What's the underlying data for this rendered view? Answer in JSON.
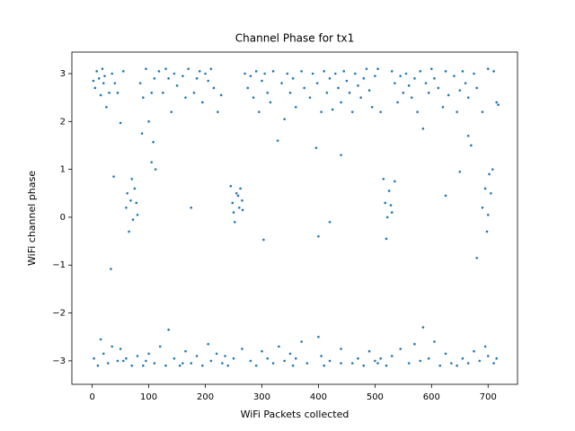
{
  "chart_data": {
    "type": "scatter",
    "title": "Channel Phase for tx1",
    "xlabel": "WiFi Packets collected",
    "ylabel": "WiFi channel phase",
    "color": "#1f77b4",
    "xlim": [
      -36,
      752
    ],
    "ylim": [
      -3.49,
      3.45
    ],
    "xticks": [
      0,
      100,
      200,
      300,
      400,
      500,
      600,
      700
    ],
    "yticks": [
      {
        "value": -3,
        "label": "−3"
      },
      {
        "value": -2,
        "label": "−2"
      },
      {
        "value": -1,
        "label": "−1"
      },
      0,
      1,
      2,
      3
    ],
    "x": [
      2,
      5,
      8,
      12,
      15,
      18,
      22,
      25,
      30,
      35,
      40,
      45,
      50,
      55,
      85,
      90,
      95,
      100,
      105,
      110,
      118,
      125,
      130,
      135,
      140,
      145,
      150,
      160,
      165,
      170,
      180,
      185,
      190,
      195,
      200,
      205,
      210,
      215,
      222,
      228,
      270,
      275,
      280,
      285,
      290,
      295,
      300,
      305,
      310,
      315,
      320,
      328,
      335,
      340,
      345,
      350,
      355,
      360,
      370,
      375,
      385,
      390,
      398,
      405,
      410,
      415,
      420,
      425,
      430,
      435,
      440,
      445,
      450,
      455,
      460,
      465,
      470,
      475,
      480,
      485,
      490,
      495,
      500,
      505,
      510,
      530,
      535,
      540,
      545,
      550,
      555,
      560,
      565,
      570,
      575,
      580,
      585,
      590,
      595,
      600,
      605,
      612,
      620,
      625,
      630,
      640,
      645,
      650,
      655,
      660,
      665,
      670,
      675,
      680,
      690,
      700,
      710,
      715,
      718,
      20,
      3,
      10,
      15,
      20,
      28,
      35,
      45,
      50,
      60,
      70,
      80,
      90,
      95,
      100,
      110,
      120,
      130,
      135,
      145,
      155,
      165,
      175,
      185,
      195,
      205,
      210,
      220,
      230,
      240,
      250,
      265,
      280,
      290,
      300,
      310,
      320,
      330,
      340,
      350,
      355,
      360,
      370,
      380,
      400,
      405,
      410,
      420,
      440,
      460,
      470,
      480,
      490,
      500,
      505,
      510,
      520,
      530,
      545,
      560,
      570,
      580,
      585,
      595,
      605,
      615,
      625,
      635,
      645,
      655,
      665,
      675,
      685,
      695,
      700,
      710,
      715,
      55,
      160,
      235,
      440,
      33,
      38,
      60,
      62,
      65,
      68,
      70,
      72,
      75,
      78,
      88,
      105,
      108,
      175,
      245,
      248,
      250,
      252,
      255,
      258,
      260,
      262,
      265,
      303,
      400,
      420,
      440,
      515,
      518,
      520,
      522,
      525,
      528,
      396,
      625,
      650,
      665,
      680,
      690,
      695,
      698,
      700,
      702,
      705,
      708,
      80,
      266,
      530,
      112,
      535
    ],
    "values": [
      2.85,
      2.7,
      3.05,
      2.9,
      2.55,
      3.1,
      2.95,
      2.3,
      2.6,
      3.0,
      2.8,
      2.6,
      1.97,
      3.05,
      2.8,
      2.5,
      3.1,
      2.0,
      2.6,
      2.9,
      3.05,
      2.6,
      3.1,
      2.9,
      2.2,
      3.0,
      2.75,
      2.95,
      2.5,
      3.1,
      2.6,
      2.9,
      3.05,
      2.4,
      3.0,
      2.85,
      3.1,
      2.7,
      2.2,
      2.55,
      3.0,
      2.7,
      2.95,
      2.5,
      3.05,
      2.2,
      2.85,
      3.0,
      2.6,
      2.4,
      3.05,
      1.6,
      2.8,
      2.05,
      3.0,
      2.6,
      2.9,
      2.3,
      3.05,
      2.7,
      2.5,
      3.0,
      2.8,
      2.2,
      3.05,
      2.6,
      2.9,
      2.25,
      3.0,
      2.7,
      2.4,
      3.05,
      2.85,
      2.6,
      2.2,
      3.0,
      2.75,
      2.5,
      2.9,
      3.1,
      2.65,
      2.3,
      2.95,
      3.1,
      2.2,
      3.05,
      2.8,
      2.4,
      2.95,
      2.6,
      3.0,
      2.75,
      2.5,
      2.9,
      2.2,
      3.05,
      1.85,
      2.8,
      2.6,
      3.1,
      2.9,
      2.7,
      2.3,
      3.05,
      2.55,
      2.95,
      2.2,
      2.65,
      3.05,
      2.8,
      2.5,
      1.5,
      3.0,
      2.7,
      2.2,
      3.1,
      3.05,
      2.4,
      2.35,
      2.8,
      -2.95,
      -3.1,
      -2.55,
      -2.85,
      -3.05,
      -2.7,
      -3.0,
      -2.75,
      -2.95,
      -3.1,
      -2.9,
      -3.1,
      -3.0,
      -2.85,
      -3.05,
      -2.7,
      -3.1,
      -2.35,
      -2.95,
      -3.1,
      -2.8,
      -3.05,
      -2.9,
      -3.1,
      -2.65,
      -3.0,
      -2.85,
      -3.05,
      -3.1,
      -2.95,
      -2.75,
      -3.0,
      -3.1,
      -2.8,
      -2.95,
      -3.05,
      -2.7,
      -3.0,
      -2.85,
      -3.1,
      -2.95,
      -2.6,
      -3.05,
      -2.5,
      -2.9,
      -3.1,
      -3.0,
      -2.75,
      -3.05,
      -2.95,
      -3.1,
      -2.8,
      -3.0,
      -3.05,
      -2.95,
      -3.1,
      -2.9,
      -2.75,
      -3.05,
      -2.65,
      -3.0,
      -2.3,
      -2.95,
      -2.6,
      -3.1,
      -2.85,
      -3.05,
      -3.1,
      -2.95,
      -3.05,
      -2.8,
      -3.0,
      -2.7,
      -2.9,
      -3.05,
      -2.95,
      -3.0,
      -3.05,
      -2.9,
      -3.05,
      -1.08,
      0.85,
      0.2,
      0.5,
      -0.3,
      0.35,
      0.8,
      -0.05,
      0.6,
      0.3,
      1.75,
      1.15,
      1.57,
      0.2,
      0.65,
      0.3,
      0.1,
      -0.1,
      0.5,
      0.45,
      0.2,
      0.6,
      0.35,
      -0.47,
      -0.4,
      -0.1,
      1.3,
      0.8,
      0.3,
      -0.45,
      0.0,
      0.55,
      0.25,
      1.45,
      0.45,
      0.95,
      1.7,
      -0.85,
      0.2,
      0.6,
      -0.3,
      0.05,
      0.9,
      0.5,
      1.0,
      0.05,
      0.15,
      0.1,
      1.0,
      0.75
    ]
  }
}
